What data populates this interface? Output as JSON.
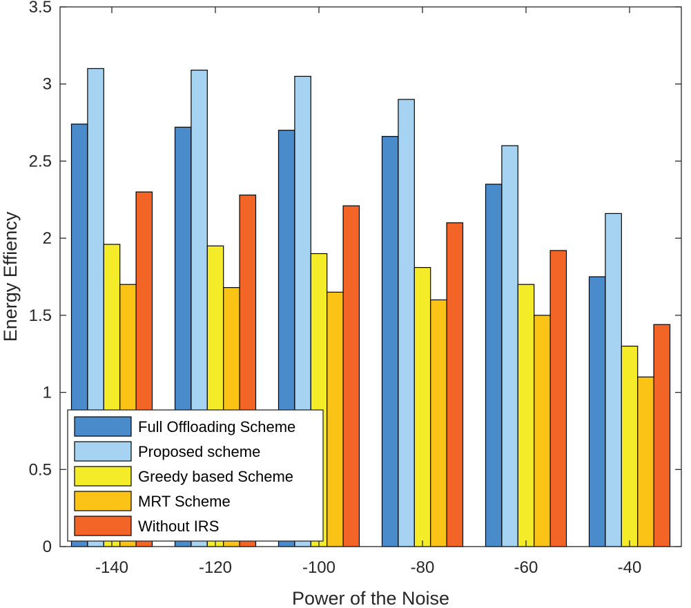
{
  "chart_data": {
    "type": "bar",
    "title": "",
    "xlabel": "Power of the Noise",
    "ylabel": "Energy Effiency",
    "categories": [
      "-140",
      "-120",
      "-100",
      "-80",
      "-60",
      "-40"
    ],
    "ylim": [
      0,
      3.5
    ],
    "yticks": [
      0,
      0.5,
      1,
      1.5,
      2,
      2.5,
      3,
      3.5
    ],
    "ytick_labels": [
      "0",
      "0.5",
      "1",
      "1.5",
      "2",
      "2.5",
      "3",
      "3.5"
    ],
    "grid": false,
    "legend_position": "bottom-left",
    "series": [
      {
        "name": "Full Offloading Scheme",
        "color": "#4A8BCB",
        "values": [
          2.74,
          2.72,
          2.7,
          2.66,
          2.35,
          1.75
        ]
      },
      {
        "name": "Proposed scheme",
        "color": "#A6D3F2",
        "values": [
          3.1,
          3.09,
          3.05,
          2.9,
          2.6,
          2.16
        ]
      },
      {
        "name": "Greedy based Scheme",
        "color": "#F4EB29",
        "values": [
          1.96,
          1.95,
          1.9,
          1.81,
          1.7,
          1.3
        ]
      },
      {
        "name": "MRT Scheme",
        "color": "#FBC315",
        "values": [
          1.7,
          1.68,
          1.65,
          1.6,
          1.5,
          1.1
        ]
      },
      {
        "name": "Without IRS",
        "color": "#F26526",
        "values": [
          2.3,
          2.28,
          2.21,
          2.1,
          1.92,
          1.44
        ]
      }
    ]
  }
}
